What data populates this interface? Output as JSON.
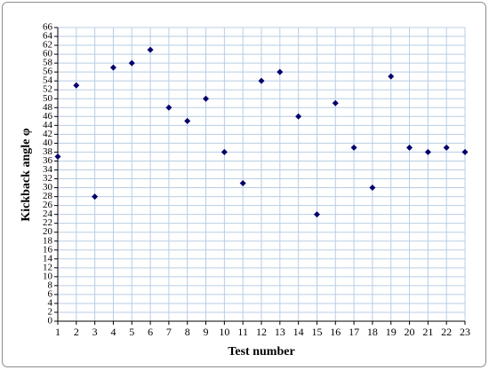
{
  "chart_data": {
    "type": "scatter",
    "x_label": "Test number",
    "y_label": "Kickback angle φ",
    "x": [
      1,
      2,
      3,
      4,
      5,
      6,
      7,
      8,
      9,
      10,
      11,
      12,
      13,
      14,
      15,
      16,
      17,
      18,
      19,
      20,
      21,
      22,
      23
    ],
    "values": [
      37,
      53,
      28,
      57,
      58,
      61,
      48,
      45,
      50,
      38,
      31,
      54,
      56,
      46,
      24,
      49,
      39,
      30,
      55,
      39,
      38,
      39,
      38
    ],
    "color": "#00006b",
    "xlim": [
      1,
      23
    ],
    "xticks": [
      1,
      2,
      3,
      4,
      5,
      6,
      7,
      8,
      9,
      10,
      11,
      12,
      13,
      14,
      15,
      16,
      17,
      18,
      19,
      20,
      21,
      22,
      23
    ],
    "ylim": [
      0,
      66
    ],
    "yticks": [
      0,
      2,
      4,
      6,
      8,
      10,
      12,
      14,
      16,
      18,
      20,
      22,
      24,
      26,
      28,
      30,
      32,
      34,
      36,
      38,
      40,
      42,
      44,
      46,
      48,
      50,
      52,
      54,
      56,
      58,
      60,
      62,
      64,
      66
    ],
    "grid": true,
    "grid_color": "#b9cde5"
  }
}
